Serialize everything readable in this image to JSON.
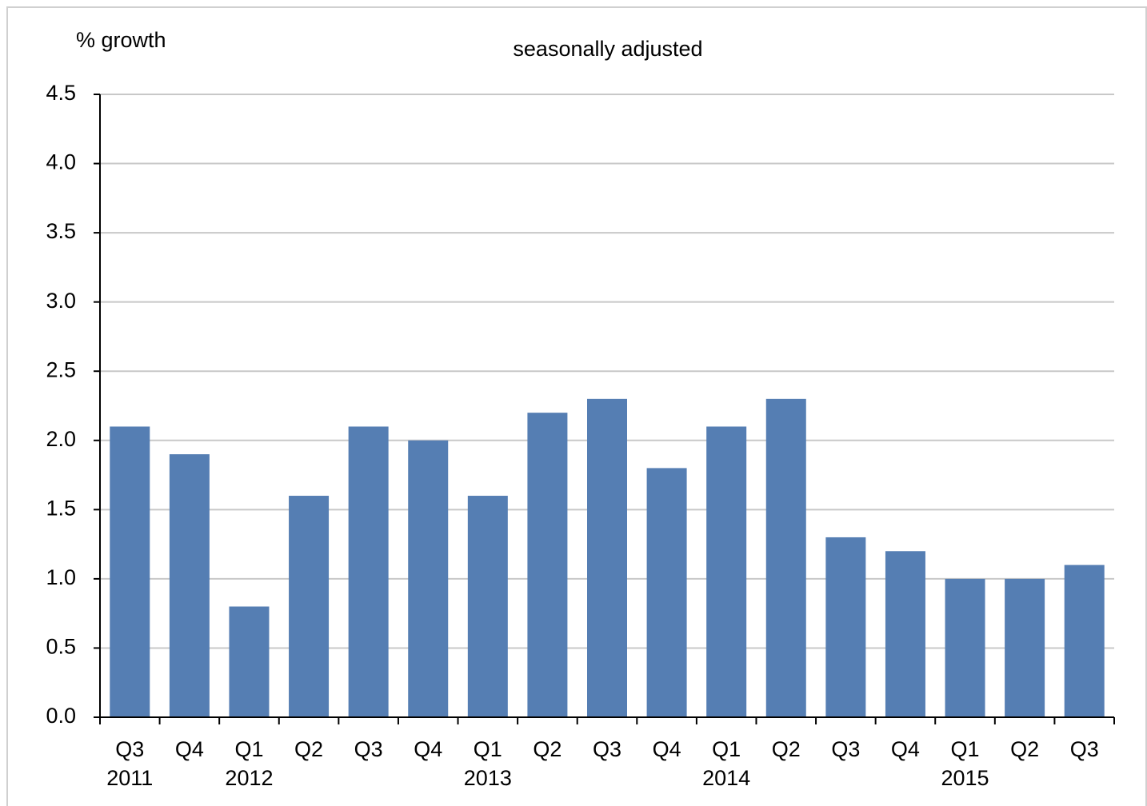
{
  "chart_data": {
    "type": "bar",
    "y_label": "% growth",
    "subtitle": "seasonally adjusted",
    "categories": [
      "Q3",
      "Q4",
      "Q1",
      "Q2",
      "Q3",
      "Q4",
      "Q1",
      "Q2",
      "Q3",
      "Q4",
      "Q1",
      "Q2",
      "Q3",
      "Q4",
      "Q1",
      "Q2",
      "Q3"
    ],
    "years": [
      "2011",
      null,
      "2012",
      null,
      null,
      null,
      "2013",
      null,
      null,
      null,
      "2014",
      null,
      null,
      null,
      "2015",
      null,
      null
    ],
    "values": [
      2.1,
      1.9,
      0.8,
      1.6,
      2.1,
      2.0,
      1.6,
      2.2,
      2.3,
      1.8,
      2.1,
      2.3,
      1.3,
      1.2,
      1.0,
      1.0,
      1.1
    ],
    "color": "#557eb3",
    "ylim": [
      0,
      4.5
    ],
    "yticks": [
      {
        "value": 0,
        "label": "0.0"
      },
      0.5,
      {
        "value": 1,
        "label": "1.0"
      },
      1.5,
      {
        "value": 2,
        "label": "2.0"
      },
      2.5,
      {
        "value": 3,
        "label": "3.0"
      },
      3.5,
      {
        "value": 4,
        "label": "4.0"
      },
      4.5
    ],
    "grid": true
  }
}
